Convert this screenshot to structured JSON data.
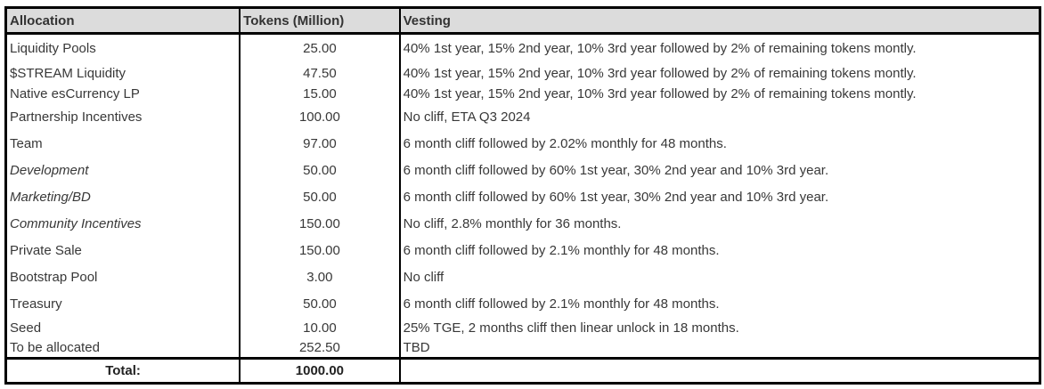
{
  "table": {
    "columns": [
      "Allocation",
      "Tokens (Million)",
      "Vesting"
    ],
    "rows": [
      {
        "allocation": "Liquidity Pools",
        "tokens": "25.00",
        "vesting": "40% 1st year, 15% 2nd year, 10% 3rd year followed by 2% of remaining tokens montly."
      },
      {
        "allocation": "$STREAM Liquidity",
        "tokens": "47.50",
        "vesting": "40% 1st year, 15% 2nd year, 10% 3rd year followed by 2% of remaining tokens montly."
      },
      {
        "allocation": "Native esCurrency LP",
        "tokens": "15.00",
        "vesting": "40% 1st year, 15% 2nd year, 10% 3rd year followed by 2% of remaining tokens montly."
      },
      {
        "allocation": "Partnership Incentives",
        "tokens": "100.00",
        "vesting": "No cliff, ETA Q3 2024"
      },
      {
        "allocation": "Team",
        "tokens": "97.00",
        "vesting": "6 month cliff followed by 2.02% monthly for 48 months."
      },
      {
        "allocation": "Development",
        "tokens": "50.00",
        "vesting": "6 month cliff followed by 60% 1st year, 30% 2nd year and 10% 3rd year."
      },
      {
        "allocation": "Marketing/BD",
        "tokens": "50.00",
        "vesting": "6 month cliff followed by 60% 1st year, 30% 2nd year and 10% 3rd year."
      },
      {
        "allocation": "Community Incentives",
        "tokens": "150.00",
        "vesting": "No cliff,  2.8% monthly for 36 months."
      },
      {
        "allocation": "Private Sale",
        "tokens": "150.00",
        "vesting": "6 month cliff followed by 2.1% monthly for 48 months."
      },
      {
        "allocation": "Bootstrap Pool",
        "tokens": "3.00",
        "vesting": "No cliff"
      },
      {
        "allocation": "Treasury",
        "tokens": "50.00",
        "vesting": "6 month cliff followed by 2.1% monthly for 48 months."
      },
      {
        "allocation": "Seed",
        "tokens": "10.00",
        "vesting": "25% TGE, 2 months cliff then linear unlock in 18 months."
      },
      {
        "allocation": "To be allocated",
        "tokens": "252.50",
        "vesting": "TBD"
      }
    ],
    "total": {
      "label": "Total:",
      "tokens": "1000.00",
      "vesting": ""
    }
  },
  "colors": {
    "header_bg": "#dcdcdc",
    "border": "#000000",
    "text": "#383838"
  }
}
